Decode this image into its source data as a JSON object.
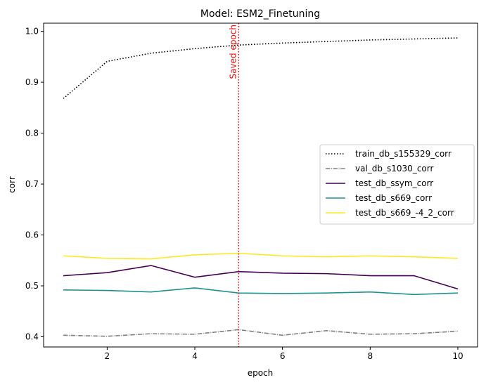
{
  "chart_data": {
    "type": "line",
    "title": "Model: ESM2_Finetuning",
    "xlabel": "epoch",
    "ylabel": "corr",
    "xlim": [
      0.55,
      10.45
    ],
    "ylim": [
      0.38,
      1.016
    ],
    "xticks": [
      2,
      4,
      6,
      8,
      10
    ],
    "yticks": [
      0.4,
      0.5,
      0.6,
      0.7,
      0.8,
      0.9,
      1.0
    ],
    "ytick_labels": [
      "0.4",
      "0.5",
      "0.6",
      "0.7",
      "0.8",
      "0.9",
      "1.0"
    ],
    "grid": false,
    "legend_position": "center-right",
    "x": [
      1,
      2,
      3,
      4,
      5,
      6,
      7,
      8,
      9,
      10
    ],
    "series": [
      {
        "name": "train_db_s155329_corr",
        "color": "#000000",
        "dash": "dotted",
        "values": [
          0.868,
          0.941,
          0.957,
          0.966,
          0.973,
          0.977,
          0.98,
          0.983,
          0.985,
          0.987
        ]
      },
      {
        "name": "val_db_s1030_corr",
        "color": "#808080",
        "dash": "dashdot",
        "values": [
          0.403,
          0.401,
          0.406,
          0.405,
          0.414,
          0.403,
          0.412,
          0.405,
          0.406,
          0.411
        ]
      },
      {
        "name": "test_db_ssym_corr",
        "color": "#440154",
        "dash": "solid",
        "values": [
          0.52,
          0.526,
          0.54,
          0.517,
          0.528,
          0.525,
          0.524,
          0.52,
          0.52,
          0.494
        ]
      },
      {
        "name": "test_db_s669_corr",
        "color": "#21918c",
        "dash": "solid",
        "values": [
          0.492,
          0.491,
          0.488,
          0.496,
          0.486,
          0.485,
          0.486,
          0.488,
          0.483,
          0.486
        ]
      },
      {
        "name": "test_db_s669_-4_2_corr",
        "color": "#fde725",
        "dash": "solid",
        "values": [
          0.559,
          0.554,
          0.553,
          0.561,
          0.564,
          0.559,
          0.557,
          0.559,
          0.557,
          0.554
        ]
      }
    ],
    "annotations": [
      {
        "type": "vline",
        "x": 5,
        "color": "#ff0000",
        "dash": "dotted",
        "label": "Saved epoch"
      }
    ]
  }
}
